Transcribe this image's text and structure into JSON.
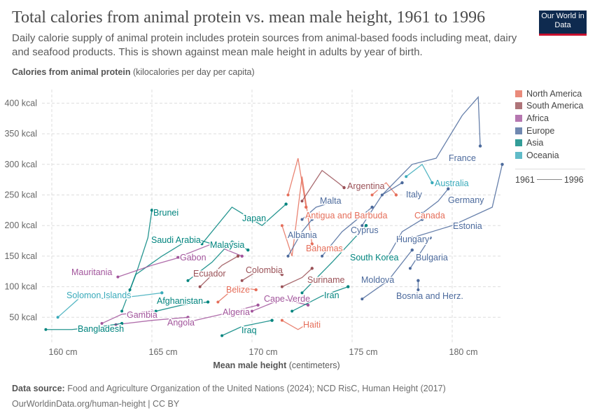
{
  "header": {
    "title": "Total calories from animal protein vs. mean male height, 1961 to 1996",
    "subtitle": "Daily calorie supply of animal protein includes protein sources from animal-based foods including meat, dairy and seafood products. This is shown against mean male height in adults by year of birth.",
    "logo": "Our World in Data"
  },
  "footer": {
    "source_label": "Data source:",
    "source": "Food and Agriculture Organization of the United Nations (2024); NCD RisC, Human Height (2017)",
    "url": "OurWorldinData.org/human-height | CC BY"
  },
  "legend": {
    "time_start": "1961",
    "time_end": "1996"
  },
  "chart_data": {
    "type": "scatter",
    "connected": true,
    "title": "Total calories from animal protein vs. mean male height, 1961 to 1996",
    "ylabel_bold": "Calories from animal protein",
    "ylabel_unit": "(kilocalories per day per capita)",
    "xlabel_bold": "Mean male height",
    "xlabel_unit": "(centimeters)",
    "xlim": [
      159.5,
      182.5
    ],
    "ylim": [
      0,
      420
    ],
    "xticks": [
      {
        "v": 160,
        "label": "160 cm"
      },
      {
        "v": 165,
        "label": "165 cm"
      },
      {
        "v": 170,
        "label": "170 cm"
      },
      {
        "v": 175,
        "label": "175 cm"
      },
      {
        "v": 180,
        "label": "180 cm"
      }
    ],
    "yticks": [
      {
        "v": 50,
        "label": "50 kcal"
      },
      {
        "v": 100,
        "label": "100 kcal"
      },
      {
        "v": 150,
        "label": "150 kcal"
      },
      {
        "v": 200,
        "label": "200 kcal"
      },
      {
        "v": 250,
        "label": "250 kcal"
      },
      {
        "v": 300,
        "label": "300 kcal"
      },
      {
        "v": 350,
        "label": "350 kcal"
      },
      {
        "v": 400,
        "label": "400 kcal"
      }
    ],
    "grid": true,
    "legend_position": "right",
    "regions": [
      {
        "name": "North America",
        "color": "#E56E5A"
      },
      {
        "name": "South America",
        "color": "#9A5157"
      },
      {
        "name": "Africa",
        "color": "#A2559C"
      },
      {
        "name": "Europe",
        "color": "#4C6A9C"
      },
      {
        "name": "Asia",
        "color": "#00847E"
      },
      {
        "name": "Oceania",
        "color": "#38AABA"
      }
    ],
    "series": [
      {
        "name": "Brunei",
        "region": "Asia",
        "points": [
          [
            163.9,
            95
          ],
          [
            164.3,
            130
          ],
          [
            164.8,
            180
          ],
          [
            165.0,
            225
          ]
        ]
      },
      {
        "name": "Saudi Arabia",
        "region": "Asia",
        "points": [
          [
            163.5,
            60
          ],
          [
            164.2,
            120
          ],
          [
            165.5,
            150
          ],
          [
            167,
            180
          ],
          [
            168,
            170
          ]
        ]
      },
      {
        "name": "Mauritania",
        "region": "Africa",
        "points": [
          [
            163.3,
            116
          ],
          [
            165,
            135
          ],
          [
            166.4,
            148
          ]
        ]
      },
      {
        "name": "Solomon Islands",
        "region": "Oceania",
        "points": [
          [
            160.3,
            50
          ],
          [
            161.5,
            85
          ],
          [
            162.8,
            80
          ],
          [
            164.3,
            85
          ],
          [
            165.5,
            90
          ]
        ]
      },
      {
        "name": "Gabon",
        "region": "Africa",
        "points": [
          [
            166.3,
            148
          ],
          [
            168,
            170
          ],
          [
            169.5,
            150
          ]
        ]
      },
      {
        "name": "Ecuador",
        "region": "South America",
        "points": [
          [
            167.4,
            100
          ],
          [
            168.5,
            135
          ],
          [
            169.3,
            150
          ]
        ]
      },
      {
        "name": "Japan",
        "region": "Asia",
        "points": [
          [
            167.5,
            170
          ],
          [
            169,
            230
          ],
          [
            170.5,
            200
          ],
          [
            171.7,
            235
          ]
        ]
      },
      {
        "name": "Malaysia",
        "region": "Asia",
        "points": [
          [
            166.8,
            110
          ],
          [
            168,
            140
          ],
          [
            169,
            175
          ],
          [
            169.8,
            160
          ]
        ]
      },
      {
        "name": "Colombia",
        "region": "South America",
        "points": [
          [
            169.5,
            110
          ],
          [
            170.5,
            130
          ],
          [
            171.5,
            120
          ]
        ]
      },
      {
        "name": "Afghanistan",
        "region": "Asia",
        "points": [
          [
            165.2,
            60
          ],
          [
            166.5,
            70
          ],
          [
            167.8,
            75
          ]
        ]
      },
      {
        "name": "Gambia",
        "region": "Africa",
        "points": [
          [
            162.5,
            40
          ],
          [
            163.5,
            55
          ],
          [
            165,
            60
          ]
        ]
      },
      {
        "name": "Angola",
        "region": "Africa",
        "points": [
          [
            163.2,
            38
          ],
          [
            165,
            45
          ],
          [
            166.8,
            50
          ]
        ]
      },
      {
        "name": "Bangladesh",
        "region": "Asia",
        "points": [
          [
            159.7,
            30
          ],
          [
            161,
            30
          ],
          [
            162.5,
            35
          ],
          [
            163.5,
            40
          ]
        ]
      },
      {
        "name": "Belize",
        "region": "North America",
        "points": [
          [
            168.3,
            75
          ],
          [
            169.2,
            100
          ],
          [
            170.2,
            95
          ]
        ]
      },
      {
        "name": "Algeria",
        "region": "Africa",
        "points": [
          [
            166.5,
            40
          ],
          [
            168.5,
            55
          ],
          [
            170.3,
            70
          ]
        ]
      },
      {
        "name": "Iraq",
        "region": "Asia",
        "points": [
          [
            168.5,
            20
          ],
          [
            169.5,
            35
          ],
          [
            171,
            45
          ]
        ]
      },
      {
        "name": "Cape Verde",
        "region": "Africa",
        "points": [
          [
            170,
            60
          ],
          [
            171.5,
            80
          ],
          [
            172.8,
            70
          ]
        ]
      },
      {
        "name": "Haiti",
        "region": "North America",
        "points": [
          [
            171.5,
            45
          ],
          [
            172.3,
            30
          ],
          [
            172.8,
            40
          ]
        ]
      },
      {
        "name": "Iran",
        "region": "Asia",
        "points": [
          [
            172,
            60
          ],
          [
            173.5,
            85
          ],
          [
            174.8,
            100
          ]
        ]
      },
      {
        "name": "Suriname",
        "region": "South America",
        "points": [
          [
            171.5,
            100
          ],
          [
            172.5,
            115
          ],
          [
            173,
            130
          ]
        ]
      },
      {
        "name": "Bahamas",
        "region": "North America",
        "points": [
          [
            171.5,
            200
          ],
          [
            172,
            150
          ],
          [
            172.5,
            280
          ],
          [
            173,
            170
          ]
        ]
      },
      {
        "name": "Albania",
        "region": "Europe",
        "points": [
          [
            171.8,
            150
          ],
          [
            172.5,
            190
          ],
          [
            173,
            210
          ]
        ]
      },
      {
        "name": "Malta",
        "region": "Europe",
        "points": [
          [
            172.5,
            210
          ],
          [
            173.2,
            230
          ],
          [
            174.2,
            240
          ]
        ]
      },
      {
        "name": "Antigua and Barbuda",
        "region": "North America",
        "points": [
          [
            171.8,
            250
          ],
          [
            172.3,
            310
          ],
          [
            172.7,
            230
          ]
        ]
      },
      {
        "name": "Argentina",
        "region": "South America",
        "points": [
          [
            172.5,
            240
          ],
          [
            173.5,
            290
          ],
          [
            174.3,
            270
          ],
          [
            174.6,
            262
          ]
        ]
      },
      {
        "name": "Cyprus",
        "region": "Europe",
        "points": [
          [
            173.5,
            150
          ],
          [
            174.5,
            190
          ],
          [
            176,
            230
          ]
        ]
      },
      {
        "name": "South Korea",
        "region": "Asia",
        "points": [
          [
            172.5,
            90
          ],
          [
            174,
            140
          ],
          [
            175.7,
            200
          ]
        ]
      },
      {
        "name": "Moldova",
        "region": "Europe",
        "points": [
          [
            175.5,
            80
          ],
          [
            176.8,
            110
          ],
          [
            178,
            160
          ]
        ]
      },
      {
        "name": "Bosnia and Herz.",
        "region": "Europe",
        "points": [
          [
            178.3,
            95
          ],
          [
            178.3,
            110
          ]
        ]
      },
      {
        "name": "Hungary",
        "region": "Europe",
        "points": [
          [
            176.8,
            150
          ],
          [
            177.5,
            190
          ],
          [
            178.5,
            210
          ]
        ]
      },
      {
        "name": "Bulgaria",
        "region": "Europe",
        "points": [
          [
            177.9,
            130
          ],
          [
            178.5,
            160
          ],
          [
            178.9,
            180
          ]
        ]
      },
      {
        "name": "Canada",
        "region": "North America",
        "points": [
          [
            176,
            250
          ],
          [
            176.7,
            270
          ],
          [
            177.2,
            250
          ]
        ]
      },
      {
        "name": "Italy",
        "region": "Europe",
        "points": [
          [
            175.5,
            200
          ],
          [
            176.5,
            250
          ],
          [
            177.5,
            270
          ]
        ]
      },
      {
        "name": "France",
        "region": "Europe",
        "points": [
          [
            176.5,
            250
          ],
          [
            178,
            300
          ],
          [
            179.2,
            310
          ],
          [
            180.5,
            380
          ],
          [
            181.3,
            410
          ],
          [
            181.4,
            330
          ]
        ]
      },
      {
        "name": "Australia",
        "region": "Oceania",
        "points": [
          [
            177.7,
            280
          ],
          [
            178.5,
            300
          ],
          [
            179,
            270
          ]
        ]
      },
      {
        "name": "Germany",
        "region": "Europe",
        "points": [
          [
            178.5,
            220
          ],
          [
            179.3,
            240
          ],
          [
            179.8,
            260
          ]
        ]
      },
      {
        "name": "Estonia",
        "region": "Europe",
        "points": [
          [
            178,
            180
          ],
          [
            180,
            200
          ],
          [
            182,
            230
          ],
          [
            182.5,
            300
          ]
        ]
      }
    ]
  }
}
